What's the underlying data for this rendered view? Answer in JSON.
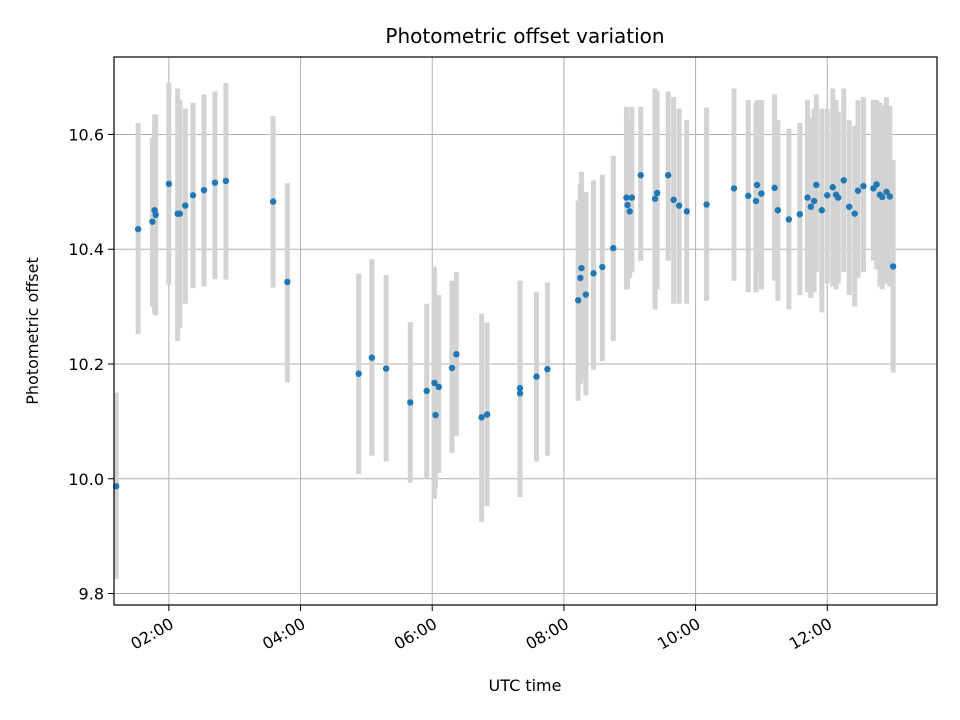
{
  "chart_data": {
    "type": "scatter",
    "title": "Photometric offset variation",
    "xlabel": "UTC time",
    "ylabel": "Photometric offset",
    "x_ticks": [
      "02:00",
      "04:00",
      "06:00",
      "08:00",
      "10:00",
      "12:00"
    ],
    "y_ticks": [
      "9.8",
      "10.0",
      "10.2",
      "10.4",
      "10.6"
    ],
    "xlim": [
      "01:10",
      "13:40"
    ],
    "ylim": [
      9.78,
      10.735
    ],
    "grid": true,
    "colors": {
      "points": "#1f77b4",
      "errorbars": "#d3d3d3",
      "grid": "#b0b0b0"
    },
    "series": [
      {
        "x": [
          "01:12",
          "01:32",
          "01:45",
          "01:47",
          "01:48",
          "02:00",
          "02:08",
          "02:10",
          "02:15",
          "02:22",
          "02:32",
          "02:42",
          "02:52",
          "03:35",
          "03:48",
          "04:53",
          "05:05",
          "05:18",
          "05:40",
          "05:55",
          "06:02",
          "06:03",
          "06:06",
          "06:18",
          "06:22",
          "06:45",
          "06:50",
          "07:20",
          "07:20",
          "07:35",
          "07:45",
          "08:13",
          "08:15",
          "08:16",
          "08:20",
          "08:27",
          "08:35",
          "08:45",
          "08:57",
          "08:58",
          "09:00",
          "09:02",
          "09:10",
          "09:23",
          "09:25",
          "09:35",
          "09:40",
          "09:45",
          "09:52",
          "10:10",
          "10:35",
          "10:48",
          "10:55",
          "10:56",
          "11:00",
          "11:12",
          "11:15",
          "11:25",
          "11:35",
          "11:42",
          "11:45",
          "11:48",
          "11:50",
          "11:55",
          "12:00",
          "12:05",
          "12:08",
          "12:10",
          "12:15",
          "12:20",
          "12:25",
          "12:28",
          "12:33",
          "12:42",
          "12:45",
          "12:48",
          "12:50",
          "12:54",
          "12:57",
          "13:00"
        ],
        "y": [
          9.987,
          10.435,
          10.448,
          10.468,
          10.46,
          10.514,
          10.462,
          10.462,
          10.476,
          10.494,
          10.503,
          10.516,
          10.519,
          10.483,
          10.343,
          10.183,
          10.211,
          10.192,
          10.133,
          10.153,
          10.167,
          10.111,
          10.16,
          10.193,
          10.217,
          10.107,
          10.112,
          10.158,
          10.149,
          10.178,
          10.191,
          10.311,
          10.35,
          10.367,
          10.321,
          10.358,
          10.369,
          10.402,
          10.49,
          10.477,
          10.466,
          10.49,
          10.529,
          10.488,
          10.498,
          10.529,
          10.486,
          10.476,
          10.466,
          10.478,
          10.506,
          10.493,
          10.484,
          10.512,
          10.497,
          10.507,
          10.468,
          10.452,
          10.461,
          10.49,
          10.474,
          10.484,
          10.512,
          10.468,
          10.494,
          10.508,
          10.495,
          10.49,
          10.52,
          10.474,
          10.462,
          10.502,
          10.51,
          10.506,
          10.513,
          10.495,
          10.491,
          10.5,
          10.492,
          10.37
        ],
        "y_low": [
          9.825,
          10.252,
          10.3,
          10.288,
          10.285,
          10.338,
          10.24,
          10.262,
          10.305,
          10.332,
          10.335,
          10.348,
          10.347,
          10.333,
          10.168,
          10.008,
          10.04,
          10.03,
          9.993,
          10.0,
          9.965,
          9.985,
          10.01,
          10.045,
          10.075,
          9.925,
          9.952,
          9.968,
          9.985,
          10.03,
          10.04,
          10.136,
          10.165,
          10.175,
          10.145,
          10.19,
          10.205,
          10.24,
          10.33,
          10.33,
          10.35,
          10.36,
          10.38,
          10.295,
          10.33,
          10.38,
          10.305,
          10.305,
          10.305,
          10.31,
          10.345,
          10.325,
          10.325,
          10.36,
          10.33,
          10.345,
          10.31,
          10.295,
          10.32,
          10.325,
          10.315,
          10.325,
          10.36,
          10.29,
          10.34,
          10.335,
          10.33,
          10.34,
          10.36,
          10.32,
          10.3,
          10.35,
          10.36,
          10.38,
          10.365,
          10.335,
          10.33,
          10.34,
          10.335,
          10.185
        ],
        "y_high": [
          10.15,
          10.62,
          10.595,
          10.635,
          10.635,
          10.69,
          10.68,
          10.66,
          10.645,
          10.655,
          10.67,
          10.675,
          10.69,
          10.632,
          10.515,
          10.358,
          10.383,
          10.355,
          10.273,
          10.305,
          10.37,
          10.32,
          10.32,
          10.345,
          10.36,
          10.288,
          10.272,
          10.345,
          10.315,
          10.325,
          10.342,
          10.485,
          10.515,
          10.535,
          10.5,
          10.52,
          10.53,
          10.563,
          10.648,
          10.625,
          10.615,
          10.648,
          10.648,
          10.68,
          10.675,
          10.675,
          10.665,
          10.645,
          10.625,
          10.647,
          10.68,
          10.66,
          10.655,
          10.66,
          10.66,
          10.67,
          10.625,
          10.61,
          10.62,
          10.66,
          10.63,
          10.645,
          10.67,
          10.645,
          10.645,
          10.68,
          10.66,
          10.64,
          10.68,
          10.625,
          10.615,
          10.66,
          10.665,
          10.66,
          10.66,
          10.655,
          10.65,
          10.665,
          10.65,
          10.555
        ]
      }
    ]
  }
}
